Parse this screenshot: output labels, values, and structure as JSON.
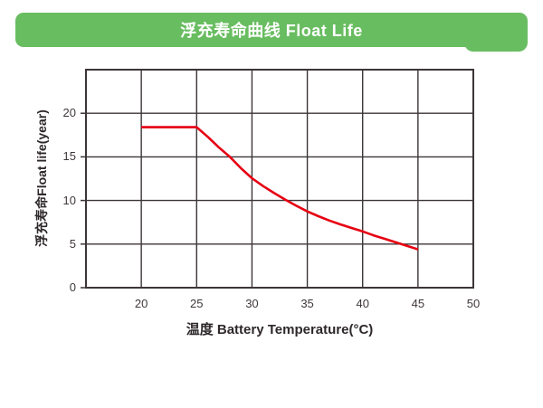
{
  "header": {
    "title": "浮充寿命曲线 Float Life",
    "bg_color": "#69bd61",
    "text_color": "#ffffff"
  },
  "chart_data": {
    "type": "line",
    "title": "浮充寿命曲线 Float Life",
    "xlabel": "温度 Battery Temperature(°C)",
    "ylabel": "浮充寿命Float life(year)",
    "xlim": [
      15,
      50
    ],
    "ylim": [
      0,
      25
    ],
    "x_ticks": [
      20,
      25,
      30,
      35,
      40,
      45,
      50
    ],
    "y_ticks": [
      0,
      5,
      10,
      15,
      20
    ],
    "x_gridlines": [
      15,
      20,
      25,
      30,
      35,
      40,
      45,
      50
    ],
    "y_gridlines": [
      0,
      5,
      10,
      15,
      20,
      25
    ],
    "grid": true,
    "legend": "none",
    "series": [
      {
        "name": "Float life",
        "color": "#e60012",
        "x": [
          20,
          25,
          26,
          27,
          28,
          29,
          30,
          31,
          32,
          33,
          34,
          35,
          36,
          37,
          38,
          39,
          40,
          41,
          42,
          43,
          44,
          45
        ],
        "y": [
          18.4,
          18.4,
          17.3,
          16.1,
          15.0,
          13.7,
          12.55,
          11.65,
          10.85,
          10.1,
          9.4,
          8.75,
          8.2,
          7.7,
          7.25,
          6.85,
          6.45,
          6.0,
          5.6,
          5.2,
          4.8,
          4.4
        ]
      }
    ],
    "colors": {
      "grid": "#3c3538",
      "tick_label": "#3f383b",
      "axis_title": "#2e282a"
    }
  }
}
